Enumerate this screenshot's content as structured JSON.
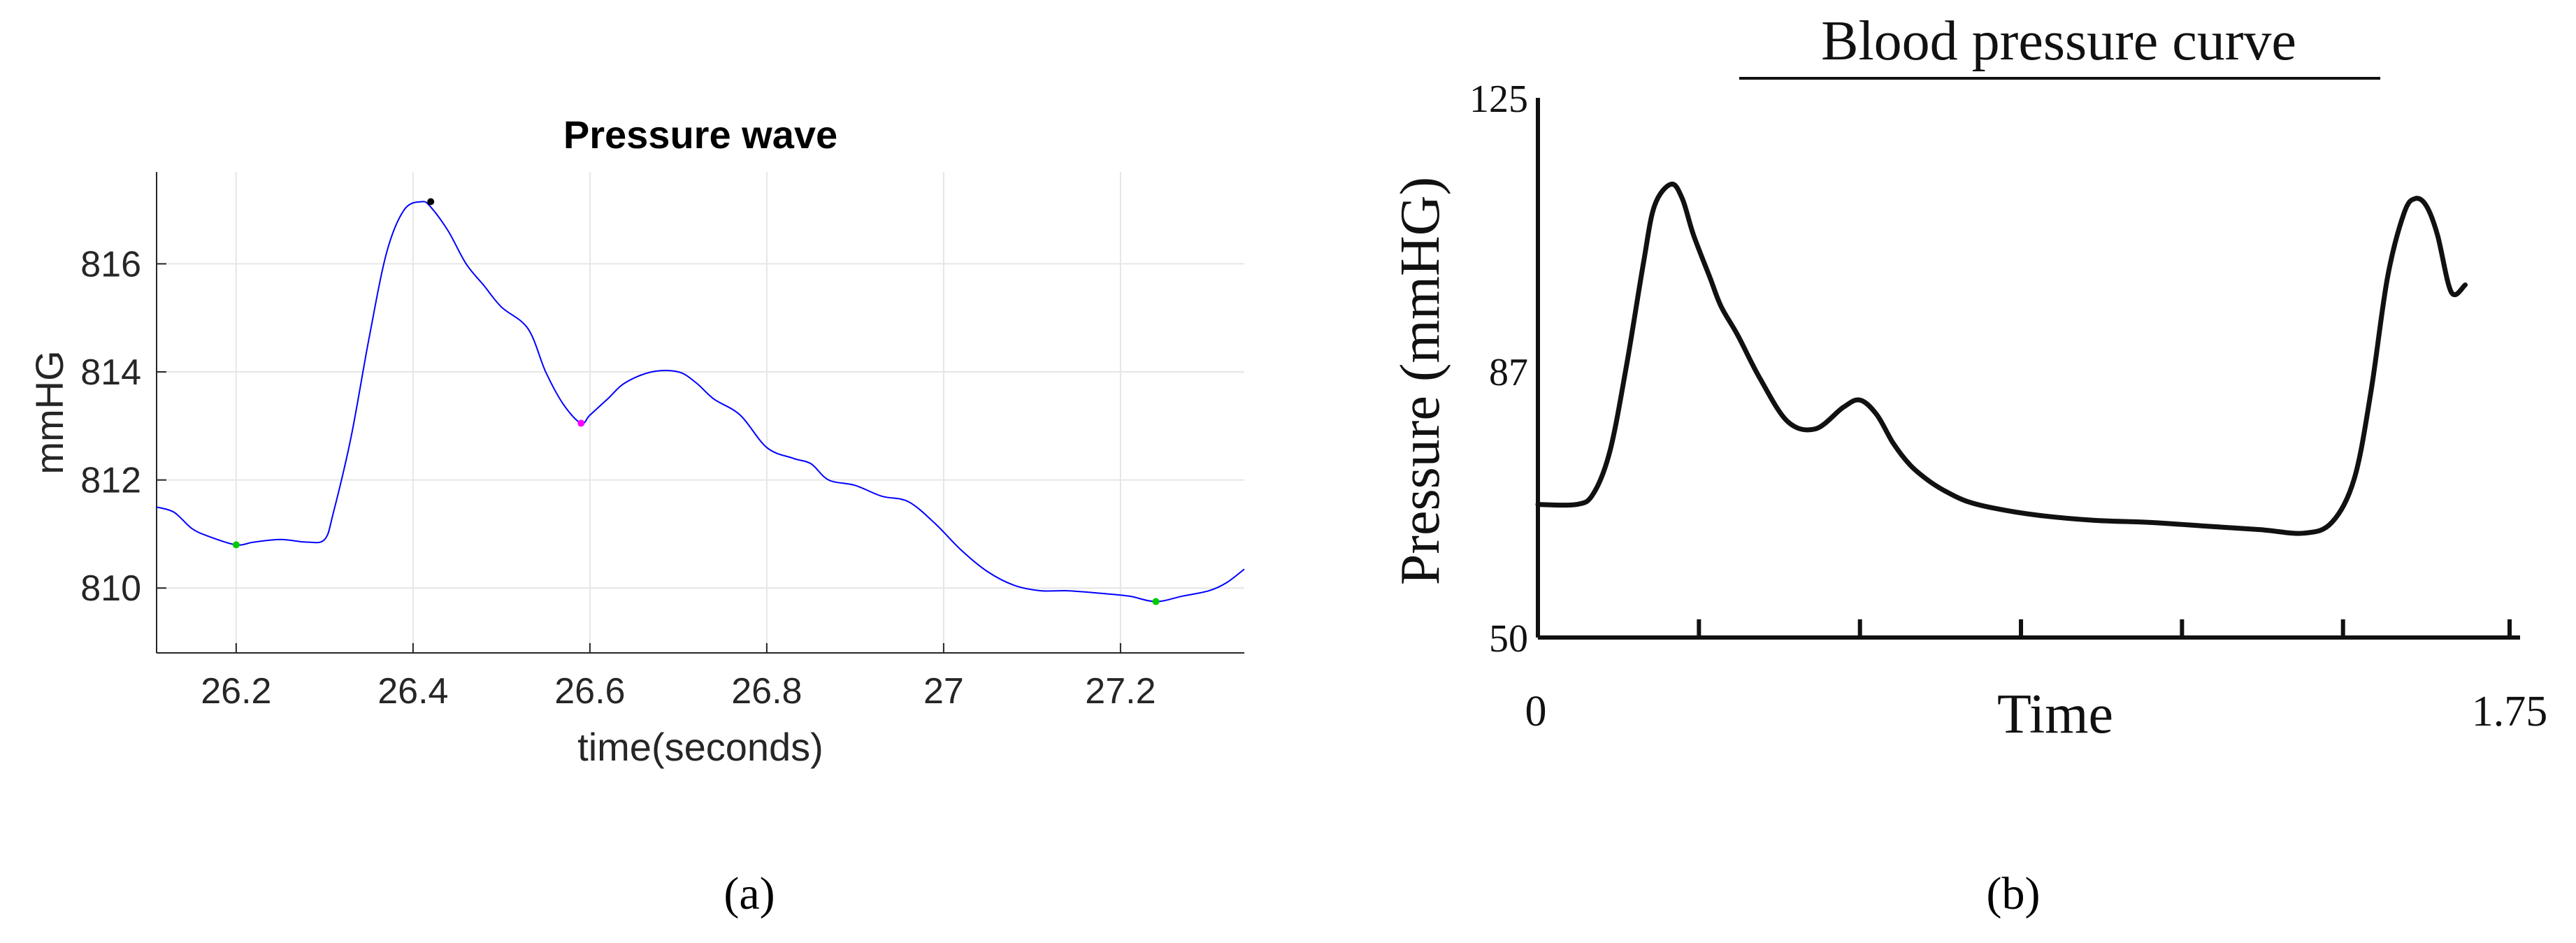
{
  "chart_data": [
    {
      "panel": "(a)",
      "type": "line",
      "title": "Pressure wave",
      "xlabel": "time(seconds)",
      "ylabel": "mmHG",
      "xlim": [
        26.11,
        27.34
      ],
      "ylim": [
        808.8,
        817.7
      ],
      "xticks": [
        26.2,
        26.4,
        26.6,
        26.8,
        27,
        27.2
      ],
      "xtick_labels": [
        "26.2",
        "26.4",
        "26.6",
        "26.8",
        "27",
        "27.2"
      ],
      "yticks": [
        810,
        812,
        814,
        816
      ],
      "ytick_labels": [
        "810",
        "812",
        "814",
        "816"
      ],
      "grid": true,
      "line_color": "#0000ff",
      "series": [
        {
          "x": [
            26.11,
            26.13,
            26.15,
            26.17,
            26.2,
            26.22,
            26.25,
            26.28,
            26.3,
            26.31,
            26.33,
            26.35,
            26.37,
            26.39,
            26.41,
            26.42,
            26.44,
            26.46,
            26.48,
            26.5,
            26.53,
            26.55,
            26.57,
            26.59,
            26.6,
            26.62,
            26.64,
            26.67,
            26.7,
            26.72,
            26.74,
            26.77,
            26.8,
            26.83,
            26.85,
            26.87,
            26.9,
            26.93,
            26.96,
            26.99,
            27.02,
            27.05,
            27.08,
            27.11,
            27.14,
            27.18,
            27.21,
            27.24,
            27.27,
            27.3,
            27.32,
            27.34
          ],
          "y": [
            811.5,
            811.4,
            811.1,
            810.95,
            810.8,
            810.85,
            810.9,
            810.85,
            810.9,
            811.4,
            812.8,
            814.6,
            816.2,
            817.0,
            817.15,
            817.05,
            816.6,
            816.0,
            815.6,
            815.2,
            814.8,
            814.0,
            813.4,
            813.05,
            813.2,
            813.5,
            813.8,
            814.0,
            814.0,
            813.8,
            813.5,
            813.2,
            812.6,
            812.4,
            812.3,
            812.0,
            811.9,
            811.7,
            811.6,
            811.2,
            810.7,
            810.3,
            810.05,
            809.95,
            809.95,
            809.9,
            809.85,
            809.75,
            809.85,
            809.95,
            810.1,
            810.35
          ]
        }
      ],
      "markers": [
        {
          "x": 26.2,
          "y": 810.8,
          "color": "#00cc00"
        },
        {
          "x": 26.42,
          "y": 817.15,
          "color": "#000000"
        },
        {
          "x": 26.59,
          "y": 813.05,
          "color": "#ff00ff"
        },
        {
          "x": 27.24,
          "y": 809.75,
          "color": "#00cc00"
        }
      ]
    },
    {
      "panel": "(b)",
      "type": "line",
      "title": "Blood pressure curve",
      "xlabel": "Time",
      "ylabel": "Pressure (mmHG)",
      "xlim": [
        0,
        1.75
      ],
      "ylim": [
        50,
        125
      ],
      "xtick_labels": [
        "0",
        "1.75"
      ],
      "minor_xticks": [
        0.29,
        0.58,
        0.87,
        1.16,
        1.45
      ],
      "ytick_labels": [
        "50",
        "87",
        "125"
      ],
      "yticks": [
        50,
        87,
        125
      ],
      "grid": false,
      "line_color": "#111111",
      "series": [
        {
          "x": [
            0,
            0.07,
            0.1,
            0.13,
            0.16,
            0.19,
            0.21,
            0.24,
            0.26,
            0.28,
            0.31,
            0.33,
            0.36,
            0.4,
            0.45,
            0.5,
            0.55,
            0.58,
            0.61,
            0.64,
            0.67,
            0.7,
            0.73,
            0.77,
            0.82,
            0.9,
            1.0,
            1.1,
            1.2,
            1.3,
            1.38,
            1.43,
            1.47,
            1.5,
            1.53,
            1.56,
            1.58,
            1.6,
            1.62,
            1.645,
            1.67
          ],
          "y": [
            68.5,
            68.5,
            70,
            76,
            88,
            102,
            110,
            113,
            111,
            106,
            100,
            96,
            92,
            86,
            80,
            79,
            82,
            83,
            81,
            77,
            74,
            72,
            70.5,
            69,
            68,
            67,
            66.3,
            66,
            65.5,
            65,
            64.5,
            66,
            72,
            84,
            100,
            109,
            111,
            110,
            106,
            98,
            99
          ]
        }
      ]
    }
  ],
  "captions": {
    "a": "(a)",
    "b": "(b)"
  }
}
